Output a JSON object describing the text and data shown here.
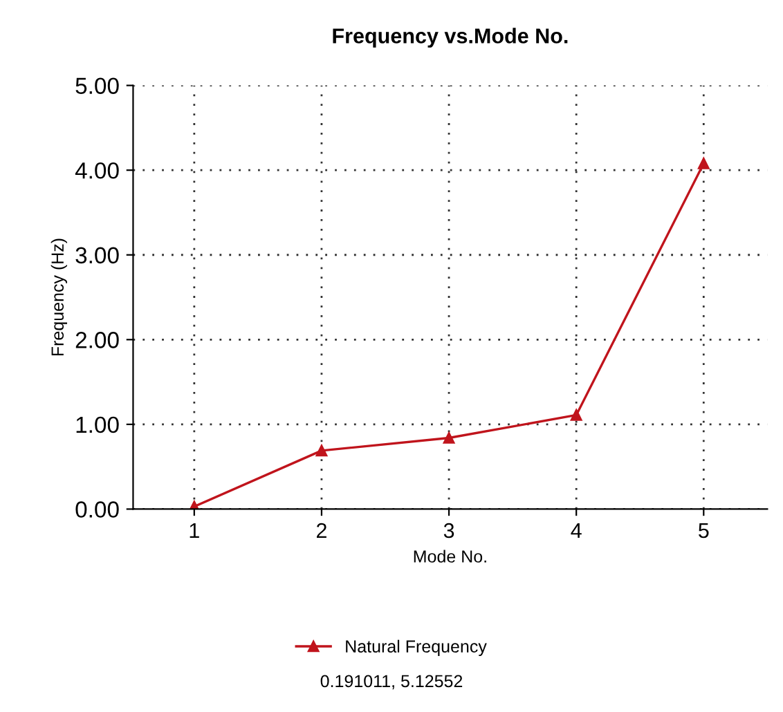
{
  "chart_data": {
    "type": "line",
    "title": "Frequency vs.Mode No.",
    "xlabel": "Mode No.",
    "ylabel": "Frequency (Hz)",
    "categories": [
      "1",
      "2",
      "3",
      "4",
      "5"
    ],
    "series": [
      {
        "name": "Natural Frequency",
        "color": "#c0141c",
        "values": [
          0.03,
          0.69,
          0.84,
          1.11,
          4.08
        ]
      }
    ],
    "ylim": [
      0,
      5
    ],
    "yticks": [
      {
        "value": 0,
        "label": "0.00"
      },
      {
        "value": 1,
        "label": "1.00"
      },
      {
        "value": 2,
        "label": "2.00"
      },
      {
        "value": 3,
        "label": "3.00"
      },
      {
        "value": 4,
        "label": "4.00"
      },
      {
        "value": 5,
        "label": "5.00"
      }
    ],
    "grid": true,
    "legend": "bottom",
    "marker": "triangle",
    "line_style": "solid",
    "annotations": [
      "0.191011, 5.12552"
    ]
  }
}
